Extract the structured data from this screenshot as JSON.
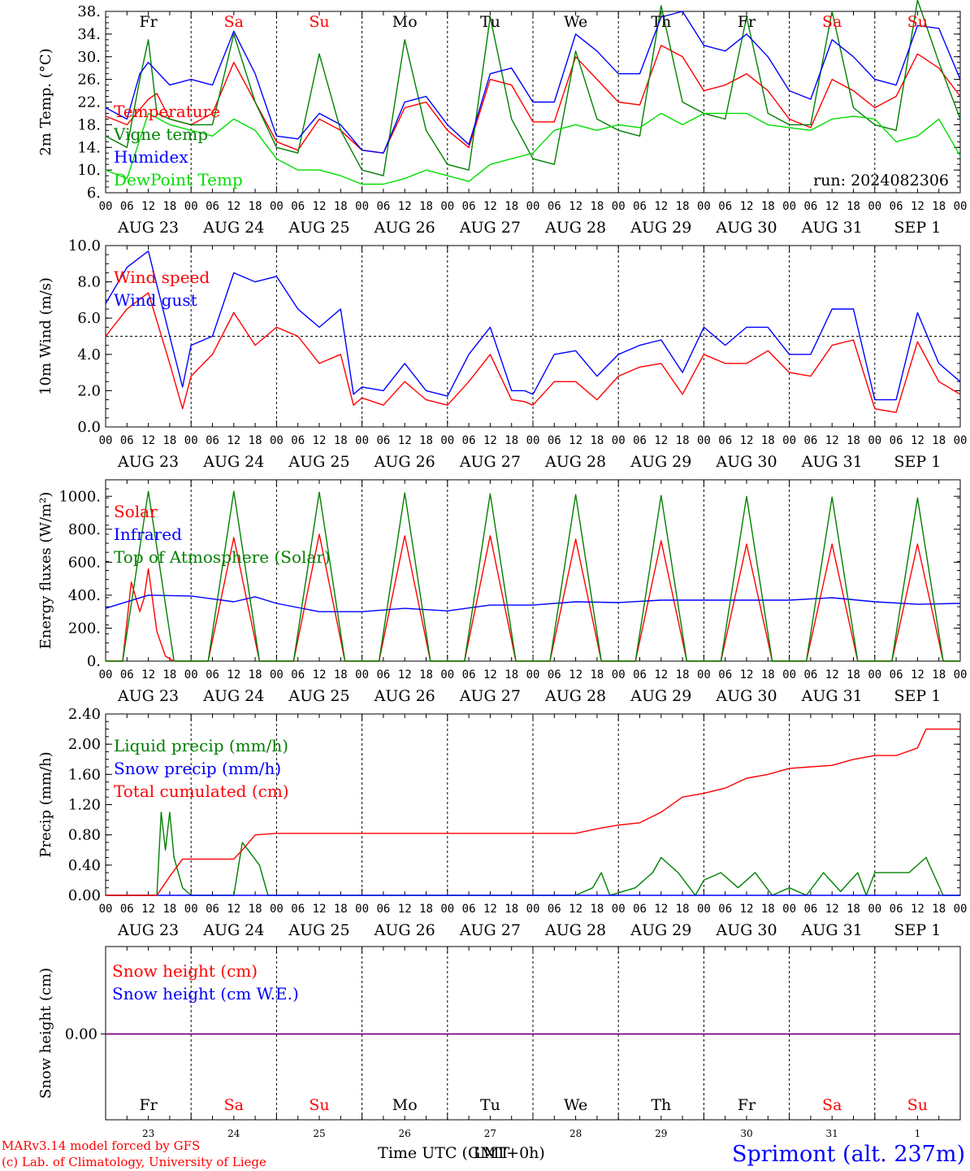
{
  "colors": {
    "red": "#ff0000",
    "blue": "#0000ff",
    "green": "#008000",
    "lightgreen": "#00dd00",
    "black": "#000000",
    "purple": "#800080"
  },
  "days": {
    "labels": [
      "Fr",
      "Sa",
      "Su",
      "Mo",
      "Tu",
      "We",
      "Th",
      "Fr",
      "Sa",
      "Su"
    ],
    "weekend": [
      false,
      true,
      true,
      false,
      false,
      false,
      false,
      false,
      true,
      true
    ],
    "dates": [
      "AUG 23",
      "AUG 24",
      "AUG 25",
      "AUG 26",
      "AUG 27",
      "AUG 28",
      "AUG 29",
      "AUG 30",
      "AUG 31",
      "SEP  1"
    ],
    "day_numbers": [
      "23",
      "24",
      "25",
      "26",
      "27",
      "28",
      "29",
      "30",
      "31",
      "1"
    ],
    "hour_ticks": [
      "00",
      "06",
      "12",
      "18"
    ],
    "final_hour_tick": "00"
  },
  "footer": {
    "model": "MARv3.14 model forced by GFS",
    "credit": "(c) Lab. of Climatology, University of Liege",
    "time_label": "Time UTC (GMT+0h)",
    "time_label_overlap": "LMT",
    "station": "Sprimont (alt. 237m)"
  },
  "chart_data": [
    {
      "type": "line",
      "ylabel": "2m Temp. (°C)",
      "ylim": [
        6,
        38
      ],
      "yticks": [
        "6.",
        "10.",
        "14.",
        "18.",
        "22.",
        "26.",
        "30.",
        "34.",
        "38."
      ],
      "run_label": "run: 2024082306",
      "grid": "dashed day separators",
      "x_unit": "days since AUG 23 00 UTC",
      "series": [
        {
          "name": "Temperature",
          "color": "#ff0000",
          "x": [
            0,
            0.25,
            0.5,
            0.6,
            0.75,
            1,
            1.25,
            1.5,
            1.75,
            2,
            2.25,
            2.5,
            2.75,
            3,
            3.25,
            3.5,
            3.75,
            4,
            4.25,
            4.5,
            4.75,
            5,
            5.25,
            5.5,
            5.75,
            6,
            6.25,
            6.5,
            6.75,
            7,
            7.25,
            7.5,
            7.75,
            8,
            8.25,
            8.5,
            8.75,
            9,
            9.25,
            9.5,
            9.75,
            10
          ],
          "y": [
            19.5,
            18,
            22.5,
            23.5,
            19,
            18,
            20,
            29,
            22,
            15,
            13.5,
            19,
            17,
            13.5,
            13,
            21,
            22,
            17,
            14,
            26,
            25,
            18.5,
            18.5,
            30,
            26,
            22,
            21.5,
            32,
            30,
            24,
            25,
            27,
            24,
            19,
            17.5,
            26,
            24,
            21,
            23,
            30.5,
            28,
            23
          ]
        },
        {
          "name": "Vigne temp",
          "color": "#008000",
          "x": [
            0,
            0.25,
            0.4,
            0.5,
            0.6,
            0.75,
            1,
            1.25,
            1.5,
            1.75,
            2,
            2.25,
            2.5,
            2.75,
            3,
            3.25,
            3.5,
            3.75,
            4,
            4.25,
            4.5,
            4.75,
            5,
            5.25,
            5.5,
            5.75,
            6,
            6.25,
            6.5,
            6.75,
            7,
            7.25,
            7.5,
            7.75,
            8,
            8.25,
            8.5,
            8.75,
            9,
            9.25,
            9.5,
            9.75,
            10
          ],
          "y": [
            16,
            14,
            26,
            33,
            20,
            19,
            18,
            18,
            34,
            22,
            14,
            13,
            30.5,
            17,
            10,
            9,
            33,
            17,
            11,
            10,
            37,
            19,
            12,
            11,
            31,
            19,
            17,
            16,
            39,
            22,
            20,
            19,
            37,
            20,
            18,
            18,
            38,
            21,
            18,
            17,
            40,
            29,
            19
          ]
        },
        {
          "name": "Humidex",
          "color": "#0000ff",
          "x": [
            0,
            0.25,
            0.4,
            0.5,
            0.75,
            1,
            1.25,
            1.5,
            1.75,
            2,
            2.25,
            2.5,
            2.75,
            3,
            3.25,
            3.5,
            3.75,
            4,
            4.25,
            4.5,
            4.75,
            5,
            5.25,
            5.5,
            5.75,
            6,
            6.25,
            6.5,
            6.75,
            7,
            7.25,
            7.5,
            7.75,
            8,
            8.25,
            8.5,
            8.75,
            9,
            9.25,
            9.5,
            9.75,
            10
          ],
          "y": [
            21,
            19,
            27,
            29,
            25,
            26,
            25,
            34.5,
            27,
            16,
            15.5,
            20,
            18,
            13.5,
            13,
            22,
            23,
            18,
            14.5,
            27,
            28,
            22,
            22,
            34,
            31,
            27,
            27,
            37,
            38,
            32,
            31,
            34,
            30,
            24,
            22.5,
            33,
            30,
            26,
            25,
            35.5,
            35,
            26
          ]
        },
        {
          "name": "DewPoint Temp",
          "color": "#00dd00",
          "x": [
            0,
            0.25,
            0.5,
            0.75,
            1,
            1.25,
            1.5,
            1.75,
            2,
            2.25,
            2.5,
            2.75,
            3,
            3.25,
            3.5,
            3.75,
            4,
            4.25,
            4.5,
            4.75,
            5,
            5.25,
            5.5,
            5.75,
            6,
            6.25,
            6.5,
            6.75,
            7,
            7.25,
            7.5,
            7.75,
            8,
            8.25,
            8.5,
            8.75,
            9,
            9.25,
            9.5,
            9.75,
            10
          ],
          "y": [
            10,
            8.5,
            20,
            18,
            17,
            16,
            19,
            17,
            12,
            10,
            10,
            9,
            7.5,
            7.5,
            8.5,
            10,
            9,
            8,
            11,
            12,
            13,
            17,
            18,
            17,
            18,
            17.5,
            20,
            18,
            20,
            20,
            20,
            18,
            17.5,
            17,
            19,
            19.5,
            19,
            15,
            16,
            19,
            12.5
          ]
        }
      ]
    },
    {
      "type": "line",
      "ylabel": "10m Wind (m/s)",
      "ylim": [
        0,
        10
      ],
      "yticks": [
        "0.0",
        "2.0",
        "4.0",
        "6.0",
        "8.0",
        "10.0"
      ],
      "reference_line": 5,
      "x_unit": "days since AUG 23 00 UTC",
      "series": [
        {
          "name": "Wind speed",
          "color": "#ff0000",
          "x": [
            0,
            0.25,
            0.5,
            0.75,
            0.9,
            1,
            1.25,
            1.5,
            1.75,
            2,
            2.25,
            2.5,
            2.75,
            2.9,
            3,
            3.25,
            3.5,
            3.75,
            4,
            4.25,
            4.5,
            4.75,
            4.9,
            5,
            5.25,
            5.5,
            5.75,
            6,
            6.25,
            6.5,
            6.75,
            7,
            7.25,
            7.5,
            7.75,
            8,
            8.25,
            8.5,
            8.75,
            9,
            9.25,
            9.5,
            9.75,
            10
          ],
          "y": [
            5,
            6.5,
            7.4,
            3.5,
            1,
            2.8,
            4,
            6.3,
            4.5,
            5.5,
            5,
            3.5,
            4,
            1.2,
            1.6,
            1.2,
            2.5,
            1.5,
            1.2,
            2.5,
            4,
            1.5,
            1.4,
            1.2,
            2.5,
            2.5,
            1.5,
            2.8,
            3.3,
            3.5,
            1.8,
            4,
            3.5,
            3.5,
            4.2,
            3,
            2.8,
            4.5,
            4.8,
            1,
            0.8,
            4.7,
            2.5,
            1.8
          ]
        },
        {
          "name": "Wind gust",
          "color": "#0000ff",
          "x": [
            0,
            0.25,
            0.5,
            0.75,
            0.9,
            1,
            1.25,
            1.5,
            1.75,
            2,
            2.25,
            2.5,
            2.75,
            2.9,
            3,
            3.25,
            3.5,
            3.75,
            4,
            4.25,
            4.5,
            4.75,
            4.9,
            5,
            5.25,
            5.5,
            5.75,
            6,
            6.25,
            6.5,
            6.75,
            7,
            7.25,
            7.5,
            7.75,
            8,
            8.25,
            8.5,
            8.75,
            9,
            9.25,
            9.5,
            9.75,
            10
          ],
          "y": [
            6.8,
            8.8,
            9.7,
            5,
            2.2,
            4.5,
            5,
            8.5,
            8,
            8.3,
            6.5,
            5.5,
            6.5,
            1.8,
            2.2,
            2,
            3.5,
            2,
            1.7,
            4,
            5.5,
            2,
            2,
            1.8,
            4,
            4.2,
            2.8,
            4,
            4.5,
            4.8,
            3,
            5.5,
            4.5,
            5.5,
            5.5,
            4,
            4,
            6.5,
            6.5,
            1.5,
            1.5,
            6.3,
            3.5,
            2.5
          ]
        }
      ]
    },
    {
      "type": "line",
      "ylabel": "Energy fluxes (W/m²)",
      "ylim": [
        0,
        1100
      ],
      "yticks": [
        "0.",
        "200.",
        "400.",
        "600.",
        "800.",
        "1000."
      ],
      "x_unit": "days since AUG 23 00 UTC",
      "series": [
        {
          "name": "Solar",
          "color": "#ff0000",
          "x": [
            0,
            0.2,
            0.3,
            0.4,
            0.45,
            0.5,
            0.6,
            0.7,
            0.8,
            1,
            1.2,
            1.5,
            1.8,
            2,
            2.2,
            2.5,
            2.8,
            3,
            3.2,
            3.5,
            3.8,
            4,
            4.2,
            4.5,
            4.8,
            5,
            5.2,
            5.5,
            5.8,
            6,
            6.2,
            6.5,
            6.8,
            7,
            7.2,
            7.5,
            7.8,
            8,
            8.2,
            8.5,
            8.8,
            9,
            9.2,
            9.5,
            9.8,
            10
          ],
          "y": [
            0,
            0,
            480,
            300,
            380,
            560,
            180,
            30,
            0,
            0,
            0,
            750,
            0,
            0,
            0,
            770,
            0,
            0,
            0,
            760,
            0,
            0,
            0,
            760,
            0,
            0,
            0,
            740,
            0,
            0,
            0,
            730,
            0,
            0,
            0,
            710,
            0,
            0,
            0,
            710,
            0,
            0,
            0,
            710,
            0,
            0
          ]
        },
        {
          "name": "Infrared",
          "color": "#0000ff",
          "x": [
            0,
            0.5,
            1,
            1.5,
            1.75,
            2,
            2.5,
            3,
            3.5,
            4,
            4.5,
            5,
            5.5,
            6,
            6.5,
            7,
            7.5,
            8,
            8.5,
            9,
            9.5,
            10
          ],
          "y": [
            320,
            400,
            395,
            360,
            390,
            350,
            300,
            300,
            320,
            305,
            340,
            340,
            360,
            355,
            370,
            370,
            370,
            370,
            385,
            360,
            345,
            350
          ]
        },
        {
          "name": "Top of Atmosphere (Solar)",
          "color": "#008000",
          "x": [
            0,
            0.2,
            0.5,
            0.8,
            1,
            1.2,
            1.5,
            1.8,
            2,
            2.2,
            2.5,
            2.8,
            3,
            3.2,
            3.5,
            3.8,
            4,
            4.2,
            4.5,
            4.8,
            5,
            5.2,
            5.5,
            5.8,
            6,
            6.2,
            6.5,
            6.8,
            7,
            7.2,
            7.5,
            7.8,
            8,
            8.2,
            8.5,
            8.8,
            9,
            9.2,
            9.5,
            9.8,
            10
          ],
          "y": [
            0,
            0,
            1030,
            0,
            0,
            0,
            1030,
            0,
            0,
            0,
            1025,
            0,
            0,
            0,
            1020,
            0,
            0,
            0,
            1015,
            0,
            0,
            0,
            1010,
            0,
            0,
            0,
            1005,
            0,
            0,
            0,
            1000,
            0,
            0,
            0,
            995,
            0,
            0,
            0,
            990,
            0,
            0
          ]
        }
      ]
    },
    {
      "type": "line",
      "ylabel": "Precip (mm/h)",
      "ylim": [
        0,
        2.4
      ],
      "yticks": [
        "0.00",
        "0.40",
        "0.80",
        "1.20",
        "1.60",
        "2.00",
        "2.40"
      ],
      "x_unit": "days since AUG 23 00 UTC",
      "series": [
        {
          "name": "Liquid precip (mm/h)",
          "color": "#008000",
          "x": [
            0,
            0.6,
            0.65,
            0.7,
            0.75,
            0.8,
            0.9,
            1,
            1.5,
            1.6,
            1.8,
            1.9,
            5.5,
            5.7,
            5.8,
            5.9,
            6.2,
            6.4,
            6.5,
            6.7,
            6.9,
            7,
            7.2,
            7.4,
            7.6,
            7.8,
            8,
            8.2,
            8.4,
            8.6,
            8.8,
            8.9,
            9,
            9.4,
            9.6,
            9.8,
            10
          ],
          "y": [
            0,
            0,
            1.1,
            0.6,
            1.1,
            0.5,
            0.1,
            0,
            0,
            0.7,
            0.4,
            0,
            0,
            0.1,
            0.3,
            0,
            0.1,
            0.3,
            0.5,
            0.3,
            0,
            0.2,
            0.3,
            0.1,
            0.3,
            0,
            0.1,
            0,
            0.3,
            0.05,
            0.3,
            0,
            0.3,
            0.3,
            0.5,
            0,
            0
          ]
        },
        {
          "name": "Snow precip (mm/h)",
          "color": "#0000ff",
          "x": [
            0,
            10
          ],
          "y": [
            0,
            0
          ]
        },
        {
          "name": "Total cumulated (cm)",
          "color": "#ff0000",
          "x": [
            0,
            0.6,
            0.75,
            0.9,
            1,
            1.5,
            1.6,
            1.75,
            2,
            5.5,
            5.75,
            6,
            6.25,
            6.5,
            6.75,
            7,
            7.25,
            7.5,
            7.75,
            8,
            8.25,
            8.5,
            8.75,
            9,
            9.25,
            9.5,
            9.6,
            10
          ],
          "y": [
            0,
            0,
            0.25,
            0.48,
            0.48,
            0.48,
            0.6,
            0.8,
            0.82,
            0.82,
            0.88,
            0.93,
            0.96,
            1.1,
            1.3,
            1.35,
            1.42,
            1.55,
            1.6,
            1.68,
            1.7,
            1.72,
            1.8,
            1.85,
            1.85,
            1.95,
            2.2,
            2.2
          ]
        }
      ]
    },
    {
      "type": "line",
      "ylabel": "Snow height (cm)",
      "yticks": [
        "0.00"
      ],
      "x_unit": "days since AUG 23 00 UTC",
      "series": [
        {
          "name": "Snow height (cm)",
          "color": "#ff0000",
          "x": [
            0,
            10
          ],
          "y": [
            0,
            0
          ]
        },
        {
          "name": "Snow height (cm W.E.)",
          "color": "#0000ff",
          "x": [
            0,
            10
          ],
          "y": [
            0,
            0
          ]
        }
      ]
    }
  ]
}
